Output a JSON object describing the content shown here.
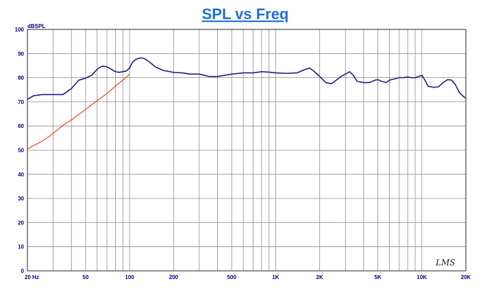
{
  "chart_data": {
    "type": "line",
    "title": "SPL vs Freq",
    "ylabel": "dBSPL",
    "xscale": "log",
    "xlim": [
      20,
      20000
    ],
    "ylim": [
      0,
      100
    ],
    "grid": true,
    "y_ticks": [
      "0",
      "10",
      "20",
      "30",
      "40",
      "50",
      "60",
      "70",
      "80",
      "90",
      "100"
    ],
    "x_ticks": [
      {
        "v": 20,
        "label": "20 Hz"
      },
      {
        "v": 50,
        "label": "50"
      },
      {
        "v": 100,
        "label": "100"
      },
      {
        "v": 200,
        "label": "200"
      },
      {
        "v": 500,
        "label": "500"
      },
      {
        "v": 1000,
        "label": "1K"
      },
      {
        "v": 2000,
        "label": "2K"
      },
      {
        "v": 5000,
        "label": "5K"
      },
      {
        "v": 10000,
        "label": "10K"
      },
      {
        "v": 20000,
        "label": "20K"
      }
    ],
    "series": [
      {
        "color": "#1a1a80",
        "x": [
          20,
          22,
          25,
          28,
          30,
          32,
          35,
          40,
          45,
          50,
          55,
          58,
          60,
          65,
          70,
          75,
          80,
          85,
          90,
          95,
          100,
          105,
          110,
          115,
          120,
          125,
          130,
          140,
          150,
          170,
          200,
          230,
          260,
          300,
          350,
          400,
          450,
          500,
          600,
          700,
          800,
          900,
          1000,
          1200,
          1400,
          1600,
          1700,
          1800,
          2000,
          2200,
          2400,
          2600,
          2800,
          3000,
          3200,
          3400,
          3600,
          4000,
          4400,
          4800,
          5000,
          5300,
          5700,
          6000,
          6500,
          7000,
          7500,
          8000,
          8500,
          9000,
          9500,
          10000,
          10500,
          11000,
          12000,
          13000,
          14000,
          15000,
          16000,
          17000,
          18000,
          19000,
          20000
        ],
        "y": [
          71,
          72.5,
          73,
          73,
          73,
          73,
          73,
          75.5,
          79,
          79.8,
          81,
          82.5,
          83.5,
          84.8,
          84.5,
          83.5,
          82.5,
          82.2,
          82.5,
          82.8,
          84,
          86.5,
          87.5,
          88,
          88.2,
          88,
          87.5,
          86,
          84.5,
          83,
          82.2,
          82,
          81.5,
          81.5,
          80.5,
          80.5,
          81,
          81.5,
          82,
          82,
          82.5,
          82.3,
          82,
          81.8,
          82,
          83.5,
          84,
          83,
          80.5,
          78,
          77.5,
          79,
          80.5,
          81.5,
          82.5,
          81,
          78.5,
          78,
          78,
          79,
          79.2,
          78.5,
          78,
          79,
          79.5,
          80,
          80,
          80.3,
          80,
          80,
          80.5,
          81,
          79,
          76.5,
          76,
          76.2,
          78,
          79.2,
          79,
          77,
          74,
          72.5,
          71.5
        ]
      },
      {
        "color": "#f04020",
        "x": [
          20,
          22,
          25,
          28,
          30,
          33,
          36,
          40,
          45,
          50,
          55,
          60,
          65,
          70,
          75,
          80,
          85,
          90,
          95,
          100
        ],
        "y": [
          50.5,
          51.8,
          53.6,
          55.5,
          57,
          59,
          60.8,
          62.5,
          64.8,
          66.8,
          68.8,
          70.5,
          72,
          73.5,
          75,
          76.5,
          77.8,
          79,
          80.2,
          81.5
        ]
      }
    ]
  },
  "logo": "LMS"
}
